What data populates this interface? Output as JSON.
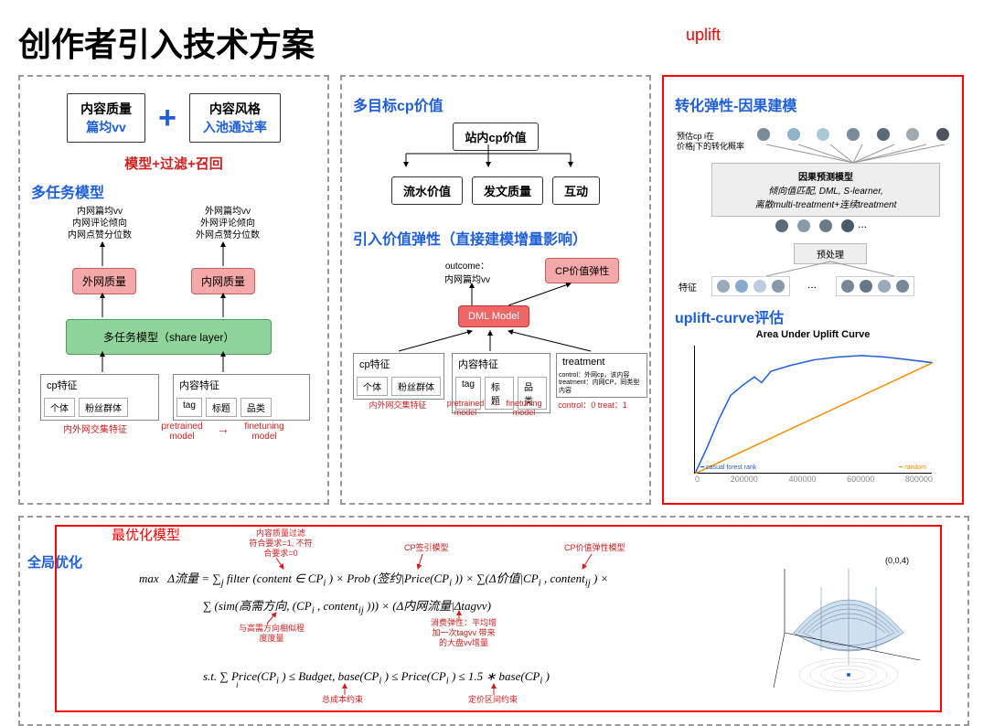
{
  "title": "创作者引入技术方案",
  "upliftLabel": "uplift",
  "panel1": {
    "box1": {
      "line1": "内容质量",
      "line2": "篇均vv"
    },
    "box2": {
      "line1": "内容风格",
      "line2": "入池通过率"
    },
    "plus": "+",
    "redLine": "模型+过滤+召回",
    "sectionTitle": "多任务模型",
    "metrics": {
      "left": [
        "内网篇均vv",
        "内网评论倾向",
        "内网点赞分位数"
      ],
      "right": [
        "外网篇均vv",
        "外网评论倾向",
        "外网点赞分位数"
      ]
    },
    "pink1": "外网质量",
    "pink2": "内网质量",
    "green": "多任务模型（share layer）",
    "cat1": {
      "label": "cp特征",
      "subs": [
        "个体",
        "粉丝群体"
      ]
    },
    "cat2": {
      "label": "内容特征",
      "subs": [
        "tag",
        "标题",
        "品类"
      ]
    },
    "bottomRed1": "内外网交集特征",
    "bottomRed2a": "pretrained",
    "bottomRed2b": "model",
    "bottomRed3a": "finetuning",
    "bottomRed3b": "model",
    "arrow": "→"
  },
  "panel2": {
    "title1": "多目标cp价值",
    "topBox": "站内cp价值",
    "row": [
      "流水价值",
      "发文质量",
      "互动"
    ],
    "title2": "引入价值弹性（直接建模增量影响）",
    "outcomeLabel": "outcome：",
    "outcomeSub": "内网篇均vv",
    "pinkRight": "CP价值弹性",
    "dml": "DML Model",
    "cat1": {
      "label": "cp特征",
      "subs": [
        "个体",
        "粉丝群体"
      ]
    },
    "cat2": {
      "label": "内容特征",
      "subs": [
        "tag",
        "标题",
        "品类"
      ]
    },
    "cat3": {
      "label": "treatment",
      "line1": "control：外网cp，该内容",
      "line2": "treatment：内网CP，同类型内容"
    },
    "bottomRed1": "内外网交集特征",
    "bottomRed2a": "pretrained",
    "bottomRed2b": "model",
    "bottomRed3a": "finetuning",
    "bottomRed3b": "model",
    "bottomRed4": "control：0   treat：1"
  },
  "panel3": {
    "title1": "转化弹性-因果建模",
    "rowLabel1": "预估cp i在",
    "rowLabel2": "价格j下的转化概率",
    "modelBox": {
      "title": "因果预测模型",
      "line1": "倾向值匹配, DML, S-learner,",
      "line2": "离散multi-treatment+连续treatment"
    },
    "preprocess": "预处理",
    "featureLabel": "特征",
    "ellipsis": "...",
    "title2": "uplift-curve评估",
    "chartTitle": "Area Under Uplift Curve",
    "dotColors": [
      "#7a8a99",
      "#8fb3c7",
      "#a8c8d8",
      "#7a8a99",
      "#5a6a78",
      "#a0a8b0",
      "#4a5560"
    ],
    "midDotColors": [
      "#5a6a78",
      "#8a9aa8",
      "#6a7a88",
      "#4a5a68"
    ],
    "featDotColorsL": [
      "#9ab",
      "#8ac",
      "#bcd",
      "#89a"
    ],
    "featDotColorsR": [
      "#789",
      "#678",
      "#9ab",
      "#789"
    ],
    "chart": {
      "upliftCurve": [
        [
          0,
          0
        ],
        [
          5,
          18
        ],
        [
          10,
          38
        ],
        [
          15,
          55
        ],
        [
          20,
          62
        ],
        [
          25,
          68
        ],
        [
          28,
          64
        ],
        [
          32,
          72
        ],
        [
          40,
          76
        ],
        [
          50,
          80
        ],
        [
          60,
          82
        ],
        [
          70,
          83
        ],
        [
          80,
          82
        ],
        [
          90,
          80
        ],
        [
          100,
          78
        ]
      ],
      "diagonalColor": "#ff8c00",
      "curveColor": "#1e5fd8",
      "legend1": "casual forest rank",
      "legend2": "random",
      "xmax": 100,
      "ymax": 90
    }
  },
  "panel4": {
    "title": "全局优化",
    "redLabel": "最优化模型",
    "annot": {
      "a1": [
        "内容质量过滤",
        "符合要求=1, 不符",
        "合要求=0"
      ],
      "a2": "CP签引模型",
      "a3": "CP价值弹性模型",
      "a4": [
        "与高需方向相似程",
        "度度量"
      ],
      "a5": [
        "消费弹性：平均增",
        "加一次tagvv 带来",
        "的大盘vv增量"
      ],
      "a6": "总成本约束",
      "a7": "定价区间约束"
    },
    "math": {
      "max": "max",
      "line1a": "Δ流量 = ∑",
      "line1b": " filter (content ∈ CP",
      "line1sub": "i",
      "line1c": ") × Prob (签约|Price(CP",
      "line1d": ")) × ∑(Δ价值|CP",
      "line1e": ", content",
      "line1subj": "ij",
      "line1f": ") ×",
      "line2a": "∑ (sim(高需方向, (CP",
      "line2b": ", content",
      "line2c": "))) × (Δ内网流量|Δtagvv)",
      "line3a": "s.t.  ∑ Price(CP",
      "line3b": ") ≤ Budget, base(CP",
      "line3c": ") ≤ Price(CP",
      "line3d": ") ≤ 1.5 ∗ base(CP",
      "line3e": ")",
      "sumJ": "j",
      "sumI": "i"
    },
    "surface": {
      "zlabel": "(0,0,4)"
    }
  }
}
